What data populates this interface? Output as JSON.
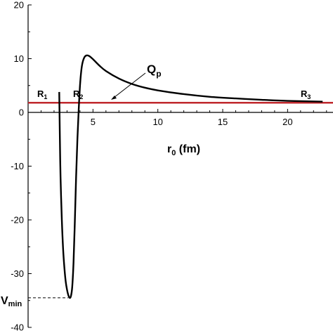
{
  "chart_data": {
    "type": "line",
    "title": "",
    "xlabel": "r",
    "xlabel_sub": "0",
    "xlabel_unit": " (fm)",
    "ylabel": "",
    "xlim": [
      0,
      23.5
    ],
    "ylim": [
      -40,
      20
    ],
    "x_ticks": [
      5,
      10,
      15,
      20
    ],
    "y_ticks": [
      20,
      10,
      0,
      -10,
      -20,
      -30,
      -40
    ],
    "grid": false,
    "colors": {
      "curve": "#000000",
      "qline": "#c0282d",
      "dashed": "#000000"
    },
    "series": [
      {
        "values": [
          [
            2.4,
            3.8
          ],
          [
            2.45,
            -5
          ],
          [
            2.5,
            -12
          ],
          [
            2.6,
            -20
          ],
          [
            2.7,
            -25.5
          ],
          [
            2.8,
            -29
          ],
          [
            2.9,
            -31.5
          ],
          [
            3.0,
            -33
          ],
          [
            3.1,
            -34
          ],
          [
            3.2,
            -34.5
          ],
          [
            3.3,
            -34.2
          ],
          [
            3.4,
            -32.5
          ],
          [
            3.5,
            -28
          ],
          [
            3.6,
            -20.5
          ],
          [
            3.7,
            -12
          ],
          [
            3.8,
            -5
          ],
          [
            3.9,
            0.5
          ],
          [
            4.0,
            5
          ],
          [
            4.1,
            7.8
          ],
          [
            4.2,
            9.3
          ],
          [
            4.35,
            10.3
          ],
          [
            4.5,
            10.6
          ],
          [
            4.7,
            10.5
          ],
          [
            5.0,
            9.9
          ],
          [
            5.5,
            8.7
          ],
          [
            6.0,
            7.7
          ],
          [
            7.0,
            6.3
          ],
          [
            8.0,
            5.3
          ],
          [
            9.0,
            4.6
          ],
          [
            10.0,
            4.1
          ],
          [
            12.0,
            3.4
          ],
          [
            14.0,
            2.9
          ],
          [
            16.0,
            2.6
          ],
          [
            18.0,
            2.35
          ],
          [
            20.0,
            2.15
          ],
          [
            22.7,
            2.0
          ]
        ]
      },
      {
        "values": [
          [
            0,
            1.8
          ],
          [
            23.5,
            1.8
          ]
        ]
      }
    ],
    "labels": {
      "qp": "Q",
      "qp_sub": "p",
      "r1": "R",
      "r1_sub": "1",
      "r2": "R",
      "r2_sub": "2",
      "r3": "R",
      "r3_sub": "3",
      "vmin": "V",
      "vmin_sub": "min"
    },
    "vmin_value": -34.5,
    "q_value": 1.8
  }
}
